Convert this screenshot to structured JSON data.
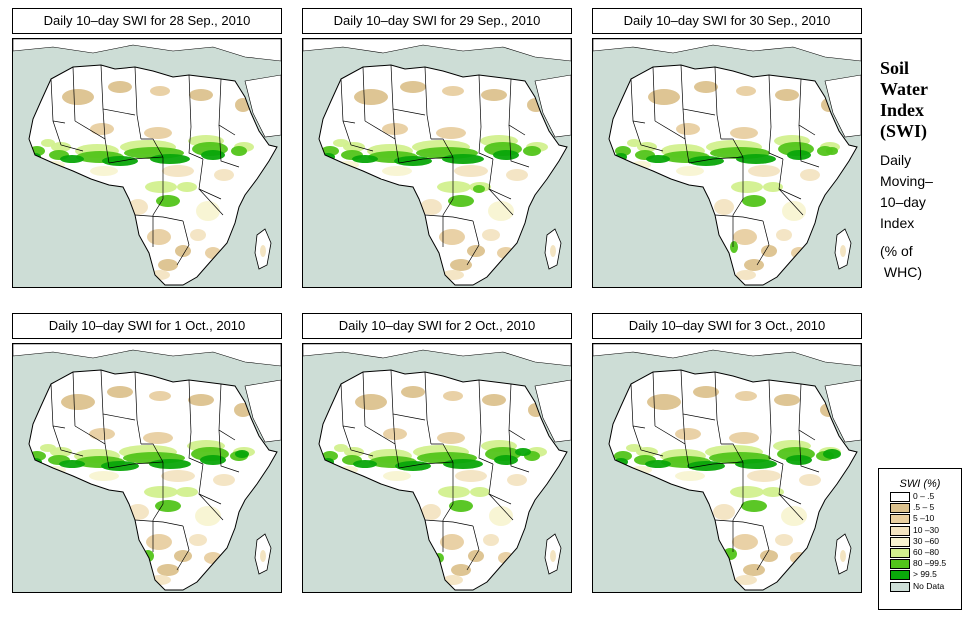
{
  "panels": [
    {
      "title": "Daily 10–day SWI for  28 Sep., 2010",
      "variant": 0
    },
    {
      "title": "Daily 10–day SWI for  29 Sep., 2010",
      "variant": 1
    },
    {
      "title": "Daily 10–day SWI for  30 Sep., 2010",
      "variant": 2
    },
    {
      "title": "Daily 10–day SWI for  1 Oct., 2010",
      "variant": 3
    },
    {
      "title": "Daily 10–day SWI for  2 Oct., 2010",
      "variant": 4
    },
    {
      "title": "Daily 10–day SWI for  3 Oct., 2010",
      "variant": 5
    }
  ],
  "side": {
    "title_lines": [
      "Soil",
      "Water",
      "Index",
      "(SWI)"
    ],
    "sub_lines": [
      "Daily",
      "Moving–",
      "10–day",
      "Index"
    ],
    "unit_lines": [
      "(% of",
      " WHC)"
    ]
  },
  "legend": {
    "title": "SWI (%)",
    "items": [
      {
        "label": "0 – .5",
        "color": "#ffffff"
      },
      {
        "label": ".5 – 5",
        "color": "#dcc28e"
      },
      {
        "label": "5 –10",
        "color": "#e8cfa1"
      },
      {
        "label": "10 –30",
        "color": "#f3e4c2"
      },
      {
        "label": "30 –60",
        "color": "#f8f4d2"
      },
      {
        "label": "60 –80",
        "color": "#d2f08e"
      },
      {
        "label": "80 –99.5",
        "color": "#52c41a"
      },
      {
        "label": "> 99.5",
        "color": "#0aa70a"
      },
      {
        "label": "No Data",
        "color": "#cdddd6"
      }
    ]
  }
}
